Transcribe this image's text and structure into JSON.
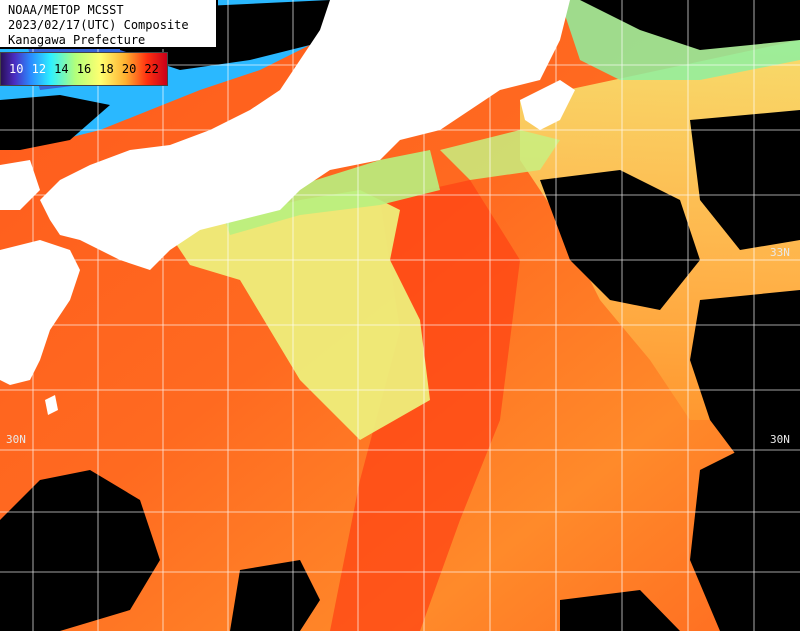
{
  "header": {
    "line1": "NOAA/METOP MCSST",
    "line2": "2023/02/17(UTC) Composite",
    "line3": "Kanagawa Prefecture"
  },
  "legend": {
    "ticks": [
      "10",
      "12",
      "14",
      "16",
      "18",
      "20",
      "22"
    ]
  },
  "lat_labels": {
    "left_30": "30N",
    "right_30": "30N",
    "right_33": "33N"
  },
  "colors": {
    "land": "#ffffff",
    "cloud": "#000000",
    "grid": "#ffffff",
    "sst_warm": "#ff4a14",
    "sst_mid": "#ff9a30",
    "sst_cool": "#f2f07a"
  }
}
